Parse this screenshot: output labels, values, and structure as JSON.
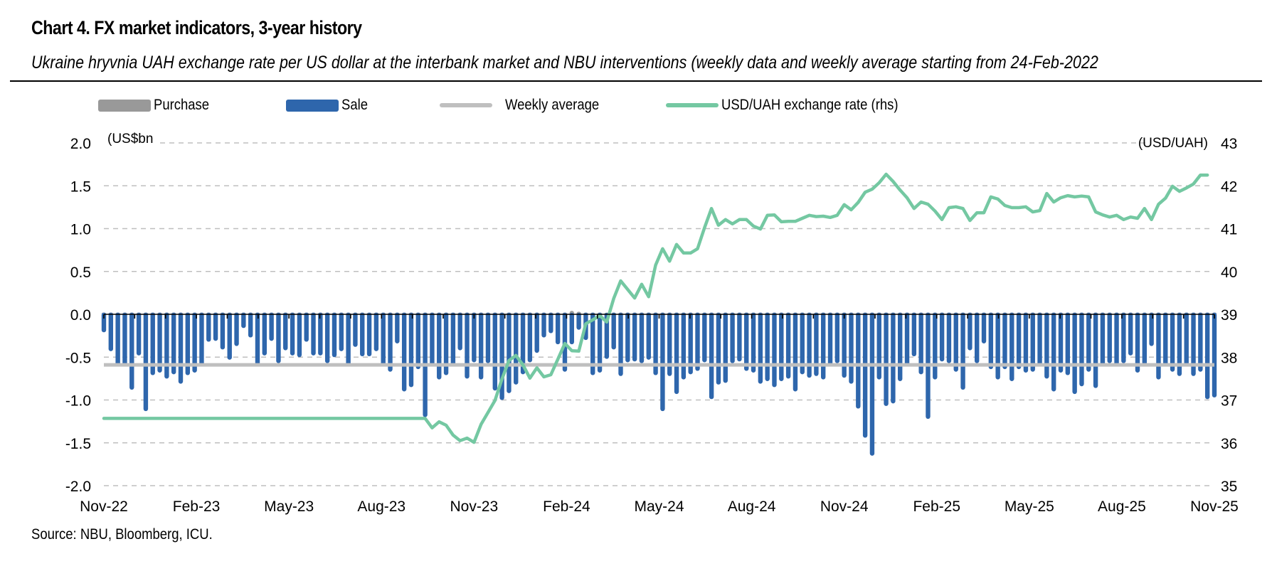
{
  "header": {
    "title": "Chart 4. FX market indicators, 3-year history",
    "subtitle": "Ukraine hryvnia UAH exchange rate per US dollar at the interbank market and NBU interventions (weekly data and weekly average starting from 24-Feb-2022"
  },
  "source": "Source: NBU, Bloomberg, ICU.",
  "colors": {
    "purchase": "#999999",
    "sale": "#2E66AC",
    "weekly_average": "#BFBFBF",
    "exchange_rate": "#74C8A2",
    "grid": "#BFBFBF",
    "axis": "#000000"
  },
  "chart_data": {
    "type": "bar",
    "title": "Chart 4. FX market indicators, 3-year history",
    "subtitle": "Ukraine hryvnia UAH exchange rate per US dollar at the interbank market and NBU interventions (weekly data and weekly average starting from 24-Feb-2022",
    "frequency": "weekly",
    "x_range": [
      "Nov-22",
      "Nov-25"
    ],
    "x_tick_labels": [
      "Nov-22",
      "Feb-23",
      "May-23",
      "Aug-23",
      "Nov-23",
      "Feb-24",
      "May-24",
      "Aug-24",
      "Nov-24",
      "Feb-25",
      "May-25",
      "Aug-25",
      "Nov-25"
    ],
    "y_left": {
      "label": "(US$bn",
      "ylim": [
        -2.0,
        2.0
      ],
      "ticks": [
        "2.0",
        "1.5",
        "1.0",
        "0.5",
        "0.0",
        "-0.5",
        "-1.0",
        "-1.5",
        "-2.0"
      ],
      "tick_values": [
        2.0,
        1.5,
        1.0,
        0.5,
        0.0,
        -0.5,
        -1.0,
        -1.5,
        -2.0
      ]
    },
    "y_right": {
      "label": "(USD/UAH)",
      "ylim": [
        35,
        43
      ],
      "ticks": [
        "43",
        "42",
        "41",
        "40",
        "39",
        "38",
        "37",
        "36",
        "35"
      ],
      "tick_values": [
        43,
        42,
        41,
        40,
        39,
        38,
        37,
        36,
        35
      ]
    },
    "grid": true,
    "legend_position": "top",
    "legend": [
      {
        "name": "Purchase",
        "kind": "bar"
      },
      {
        "name": "Sale",
        "kind": "bar"
      },
      {
        "name": "Weekly average",
        "kind": "line"
      },
      {
        "name": "USD/UAH exchange rate (rhs)",
        "kind": "line"
      }
    ],
    "series": [
      {
        "name": "Sale",
        "axis": "left",
        "unit": "US$bn",
        "values": [
          -0.21,
          -0.43,
          -0.6,
          -0.6,
          -0.88,
          -0.48,
          -1.13,
          -0.71,
          -0.68,
          -0.75,
          -0.7,
          -0.81,
          -0.71,
          -0.68,
          -0.6,
          -0.32,
          -0.31,
          -0.41,
          -0.53,
          -0.37,
          -0.16,
          -0.27,
          -0.59,
          -0.48,
          -0.31,
          -0.57,
          -0.42,
          -0.48,
          -0.5,
          -0.32,
          -0.48,
          -0.48,
          -0.57,
          -0.5,
          -0.43,
          -0.61,
          -0.38,
          -0.49,
          -0.49,
          -0.43,
          -0.6,
          -0.67,
          -0.34,
          -0.9,
          -0.85,
          -0.64,
          -1.2,
          -0.6,
          -0.76,
          -0.71,
          -0.6,
          -0.42,
          -0.75,
          -0.56,
          -0.76,
          -0.57,
          -0.89,
          -1.0,
          -0.92,
          -0.82,
          -0.7,
          -0.56,
          -0.45,
          -0.27,
          -0.22,
          -0.35,
          -0.67,
          -0.35,
          -0.18,
          -0.3,
          -0.71,
          -0.68,
          -0.52,
          -0.41,
          -0.72,
          -0.56,
          -0.55,
          -0.57,
          -0.53,
          -0.71,
          -1.13,
          -0.72,
          -0.93,
          -0.76,
          -0.7,
          -0.66,
          -0.56,
          -0.99,
          -0.82,
          -0.8,
          -0.57,
          -0.55,
          -0.66,
          -0.68,
          -0.81,
          -0.78,
          -0.85,
          -0.78,
          -0.75,
          -0.9,
          -0.7,
          -0.74,
          -0.72,
          -0.76,
          -0.59,
          -0.57,
          -0.74,
          -0.81,
          -1.1,
          -1.44,
          -1.65,
          -0.76,
          -1.07,
          -1.04,
          -0.78,
          -0.6,
          -0.49,
          -0.7,
          -1.22,
          -0.76,
          -0.55,
          -0.57,
          -0.67,
          -0.88,
          -0.42,
          -0.57,
          -0.34,
          -0.64,
          -0.76,
          -0.64,
          -0.78,
          -0.64,
          -0.68,
          -0.67,
          -0.61,
          -0.75,
          -0.9,
          -0.68,
          -0.71,
          -0.93,
          -0.84,
          -0.67,
          -0.86,
          -0.6,
          -0.57,
          -0.6,
          -0.57,
          -0.48,
          -0.68,
          -0.59,
          -0.37,
          -0.76,
          -0.61,
          -0.67,
          -0.72,
          -0.61,
          -0.72,
          -0.67,
          -0.99,
          -0.97
        ]
      },
      {
        "name": "Purchase",
        "axis": "left",
        "unit": "US$bn",
        "values": [
          0,
          0,
          0,
          0,
          0,
          0,
          0,
          0,
          0,
          0,
          0,
          0,
          0,
          0,
          0,
          0,
          0,
          0,
          0,
          0,
          0,
          0,
          0,
          0,
          0,
          0,
          0,
          0,
          0,
          0,
          0,
          0,
          0,
          0,
          0,
          0,
          0,
          0,
          0,
          0,
          0,
          0,
          0,
          0,
          0,
          0,
          0,
          0,
          0,
          0,
          0,
          0,
          0,
          0,
          0,
          0,
          0,
          0,
          0,
          0,
          0,
          0,
          0,
          0,
          0,
          0,
          0,
          0.04,
          0.03,
          0,
          0,
          0,
          0.02,
          0,
          0,
          0,
          0,
          0,
          0,
          0,
          0,
          0,
          0,
          0,
          0,
          0,
          0,
          0,
          0,
          0,
          0,
          0,
          0,
          0,
          0,
          0,
          0,
          0,
          0,
          0,
          0,
          0,
          0,
          0,
          0,
          0,
          0,
          0,
          0,
          0,
          0,
          0,
          0,
          0,
          0,
          0,
          0,
          0,
          0,
          0,
          0,
          0,
          0,
          0,
          0,
          0,
          0,
          0,
          0,
          0,
          0,
          0,
          0,
          0,
          0,
          0,
          0,
          0,
          0,
          0,
          0,
          0,
          0,
          0,
          0,
          0,
          0,
          0,
          0,
          0,
          0,
          0,
          0,
          0,
          0,
          0,
          0,
          0
        ]
      },
      {
        "name": "Weekly average",
        "axis": "left",
        "unit": "US$bn",
        "constant": -0.59
      },
      {
        "name": "USD/UAH exchange rate (rhs)",
        "axis": "right",
        "unit": "USD/UAH",
        "values": [
          36.57,
          36.57,
          36.57,
          36.57,
          36.57,
          36.57,
          36.57,
          36.57,
          36.57,
          36.57,
          36.57,
          36.57,
          36.57,
          36.57,
          36.57,
          36.57,
          36.57,
          36.57,
          36.57,
          36.57,
          36.57,
          36.57,
          36.57,
          36.57,
          36.57,
          36.57,
          36.57,
          36.57,
          36.57,
          36.57,
          36.57,
          36.57,
          36.57,
          36.57,
          36.57,
          36.57,
          36.57,
          36.57,
          36.57,
          36.57,
          36.57,
          36.57,
          36.57,
          36.57,
          36.57,
          36.57,
          36.57,
          36.35,
          36.49,
          36.41,
          36.18,
          36.05,
          36.11,
          36.01,
          36.43,
          36.71,
          36.99,
          37.49,
          37.92,
          38.04,
          37.82,
          37.51,
          37.75,
          37.54,
          37.59,
          37.95,
          38.32,
          38.15,
          38.14,
          38.78,
          38.87,
          38.97,
          38.82,
          39.37,
          39.78,
          39.58,
          39.38,
          39.7,
          39.41,
          40.15,
          40.53,
          40.24,
          40.63,
          40.43,
          40.43,
          40.53,
          41.02,
          41.47,
          41.08,
          41.21,
          41.11,
          41.21,
          41.21,
          41.06,
          40.99,
          41.31,
          41.32,
          41.16,
          41.17,
          41.17,
          41.24,
          41.31,
          41.28,
          41.29,
          41.26,
          41.31,
          41.56,
          41.44,
          41.61,
          41.85,
          41.92,
          42.07,
          42.27,
          42.1,
          41.9,
          41.72,
          41.47,
          41.62,
          41.57,
          41.41,
          41.21,
          41.49,
          41.51,
          41.47,
          41.19,
          41.37,
          41.37,
          41.74,
          41.69,
          41.54,
          41.49,
          41.49,
          41.51,
          41.39,
          41.42,
          41.82,
          41.62,
          41.72,
          41.77,
          41.74,
          41.76,
          41.74,
          41.39,
          41.32,
          41.27,
          41.31,
          41.21,
          41.27,
          41.24,
          41.47,
          41.21,
          41.57,
          41.71,
          41.99,
          41.87,
          41.95,
          42.04,
          42.25,
          42.25
        ]
      }
    ]
  }
}
